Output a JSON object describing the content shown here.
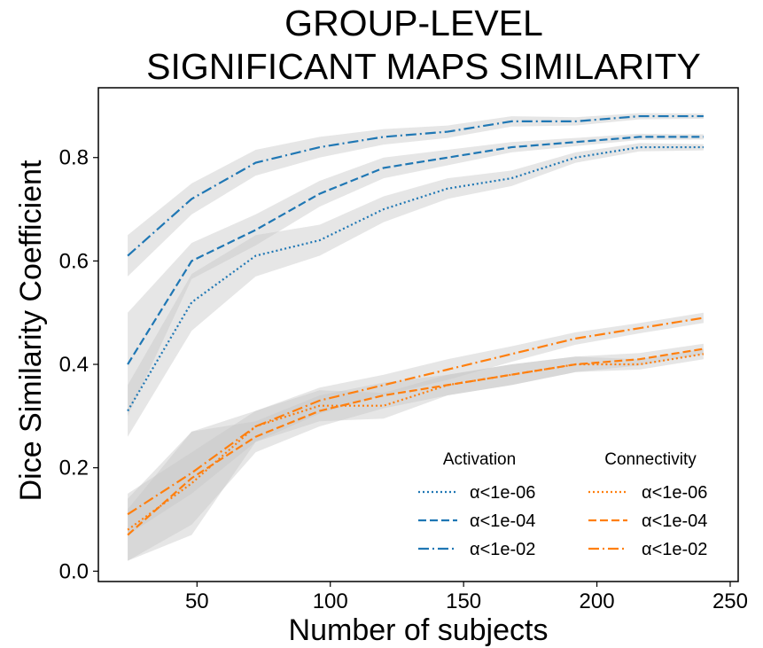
{
  "chart_data": {
    "type": "line",
    "title_lines": [
      "GROUP-LEVEL",
      "SIGNIFICANT MAPS SIMILARITY"
    ],
    "xlabel": "Number of subjects",
    "ylabel": "Dice Similarity Coefficient",
    "xlim": [
      13,
      253
    ],
    "ylim": [
      -0.02,
      0.935
    ],
    "x_ticks": [
      50,
      100,
      150,
      200,
      250
    ],
    "y_ticks": [
      0.0,
      0.2,
      0.4,
      0.6,
      0.8
    ],
    "y_tick_labels": [
      "0.0",
      "0.2",
      "0.4",
      "0.6",
      "0.8"
    ],
    "grid": false,
    "legend_position": "lower-right",
    "band_color": "#c8c8c8",
    "legend_groups": [
      {
        "title": "Activation",
        "color": "#1f77b4"
      },
      {
        "title": "Connectivity",
        "color": "#ff7f0e"
      }
    ],
    "x": [
      24,
      48,
      72,
      96,
      120,
      144,
      168,
      192,
      216,
      240
    ],
    "series": [
      {
        "name": "α<1e-06",
        "group": "Activation",
        "color": "#1f77b4",
        "linestyle": "dotted",
        "values": [
          0.31,
          0.52,
          0.61,
          0.64,
          0.7,
          0.74,
          0.76,
          0.8,
          0.82,
          0.82
        ],
        "band": [
          0.05,
          0.055,
          0.04,
          0.03,
          0.025,
          0.02,
          0.015,
          0.01,
          0.008,
          0.006
        ]
      },
      {
        "name": "α<1e-04",
        "group": "Activation",
        "color": "#1f77b4",
        "linestyle": "dashed",
        "values": [
          0.4,
          0.6,
          0.66,
          0.73,
          0.78,
          0.8,
          0.82,
          0.83,
          0.84,
          0.84
        ],
        "band": [
          0.1,
          0.035,
          0.03,
          0.025,
          0.02,
          0.015,
          0.01,
          0.008,
          0.006,
          0.005
        ]
      },
      {
        "name": "α<1e-02",
        "group": "Activation",
        "color": "#1f77b4",
        "linestyle": "dashdot",
        "values": [
          0.61,
          0.72,
          0.79,
          0.82,
          0.84,
          0.85,
          0.87,
          0.87,
          0.88,
          0.88
        ],
        "band": [
          0.04,
          0.03,
          0.025,
          0.02,
          0.015,
          0.012,
          0.01,
          0.008,
          0.006,
          0.005
        ]
      },
      {
        "name": "α<1e-06",
        "group": "Connectivity",
        "color": "#ff7f0e",
        "linestyle": "dotted",
        "values": [
          0.08,
          0.17,
          0.28,
          0.32,
          0.32,
          0.36,
          0.38,
          0.4,
          0.4,
          0.42
        ],
        "band": [
          0.06,
          0.1,
          0.03,
          0.03,
          0.025,
          0.02,
          0.02,
          0.015,
          0.01,
          0.01
        ]
      },
      {
        "name": "α<1e-04",
        "group": "Connectivity",
        "color": "#ff7f0e",
        "linestyle": "dashed",
        "values": [
          0.07,
          0.18,
          0.26,
          0.31,
          0.34,
          0.36,
          0.38,
          0.4,
          0.41,
          0.43
        ],
        "band": [
          0.05,
          0.09,
          0.03,
          0.03,
          0.025,
          0.02,
          0.02,
          0.015,
          0.012,
          0.01
        ]
      },
      {
        "name": "α<1e-02",
        "group": "Connectivity",
        "color": "#ff7f0e",
        "linestyle": "dashdot",
        "values": [
          0.11,
          0.19,
          0.28,
          0.33,
          0.36,
          0.39,
          0.42,
          0.45,
          0.47,
          0.49
        ],
        "band": [
          0.04,
          0.04,
          0.03,
          0.025,
          0.02,
          0.02,
          0.015,
          0.012,
          0.01,
          0.01
        ]
      }
    ]
  }
}
